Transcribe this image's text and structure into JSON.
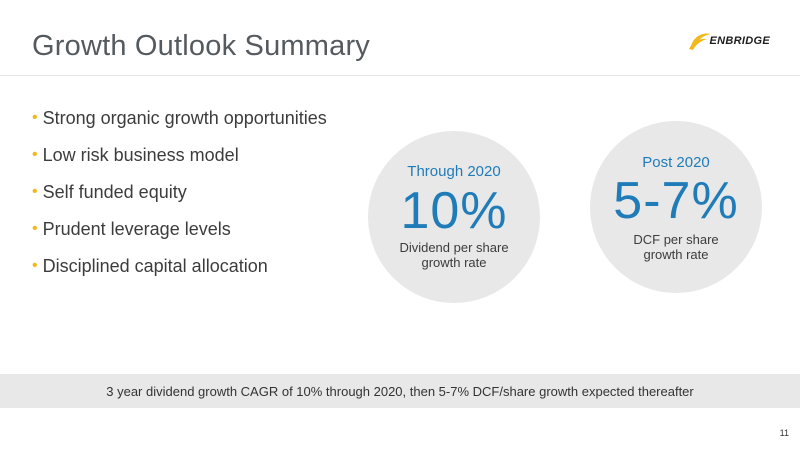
{
  "slide": {
    "title": "Growth Outlook Summary",
    "logo_text": "ENBRIDGE",
    "logo_icon": "enbridge-swoosh-icon",
    "page_number": "11"
  },
  "bullets": [
    "Strong organic growth opportunities",
    "Low risk business model",
    "Self funded equity",
    "Prudent leverage levels",
    "Disciplined capital allocation"
  ],
  "bullet_glyph": "•",
  "callouts": [
    {
      "period": "Through 2020",
      "value": "10%",
      "desc_line1": "Dividend per share",
      "desc_line2": "growth rate"
    },
    {
      "period": "Post 2020",
      "value": "5-7%",
      "desc_line1": "DCF per share",
      "desc_line2": "growth rate"
    }
  ],
  "footer": {
    "text": "3 year dividend growth CAGR of 10% through 2020, then 5-7% DCF/share growth expected thereafter"
  },
  "colors": {
    "accent_blue": "#1f7cb8",
    "bullet_yellow": "#f1b81b",
    "panel_gray": "#e8e8e8"
  }
}
